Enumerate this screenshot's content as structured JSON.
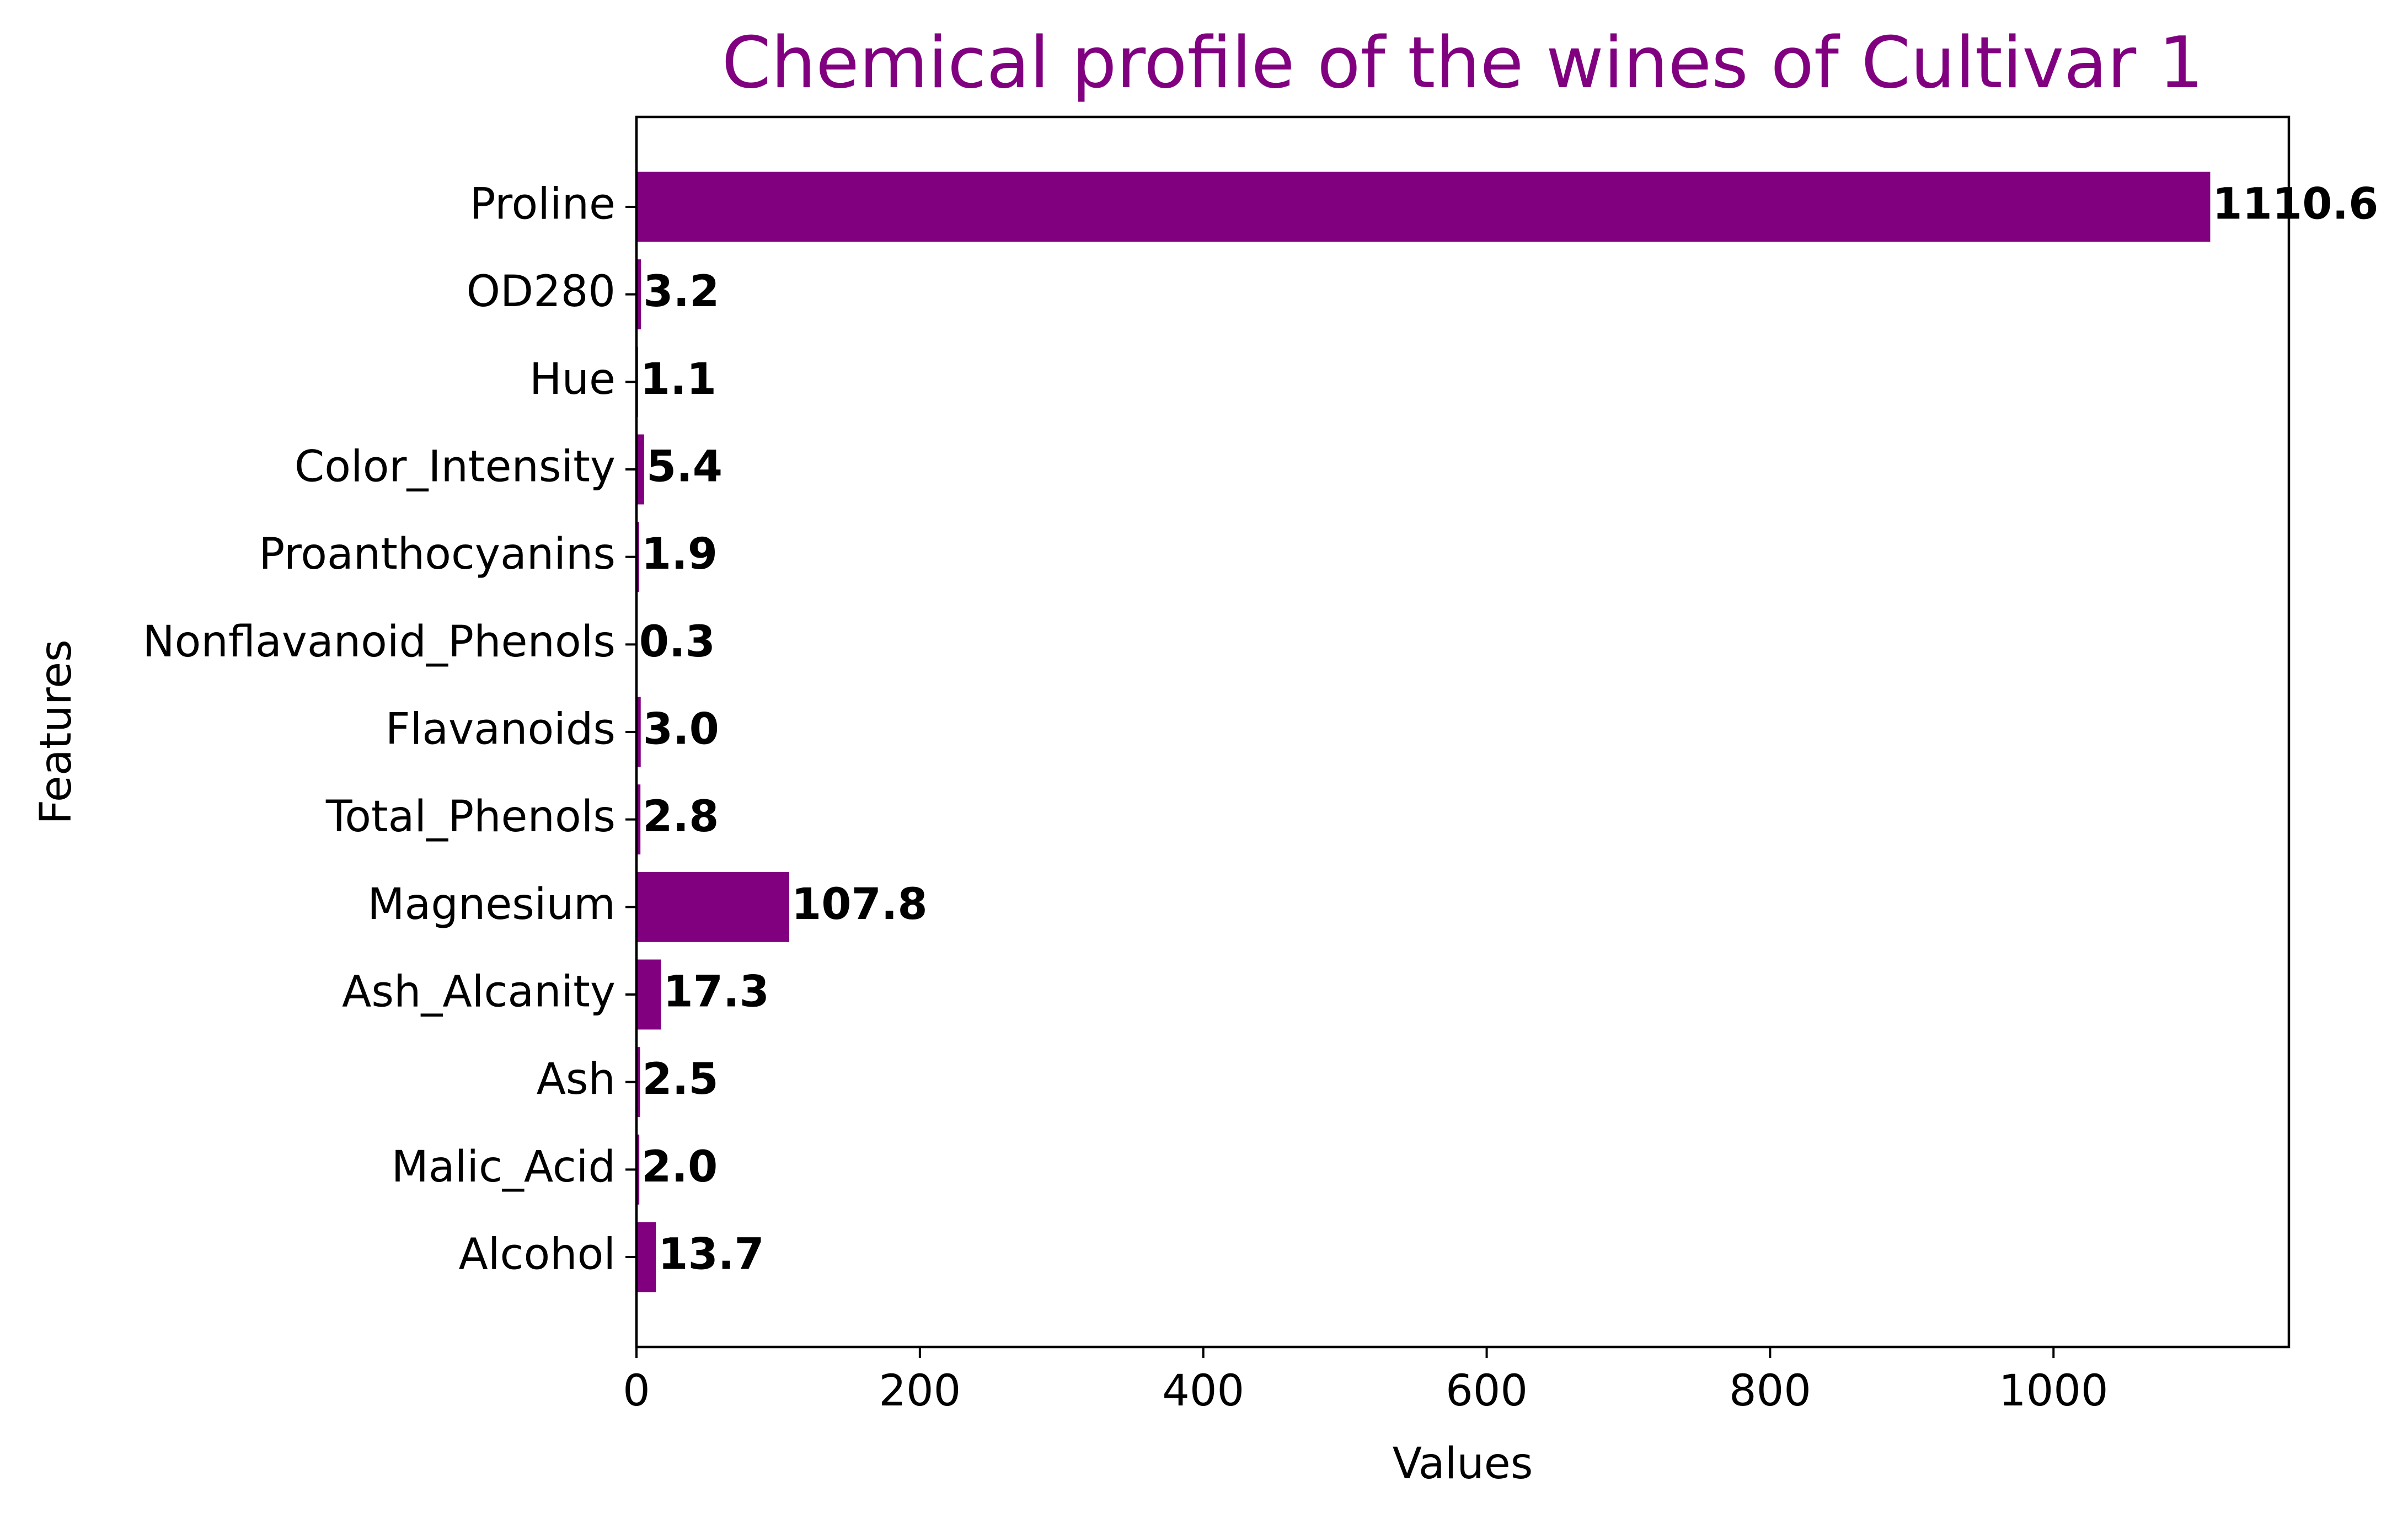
{
  "chart_data": {
    "type": "bar",
    "orientation": "horizontal",
    "title": "Chemical profile of the wines of Cultivar 1",
    "xlabel": "Values",
    "ylabel": "Features",
    "categories": [
      "Alcohol",
      "Malic_Acid",
      "Ash",
      "Ash_Alcanity",
      "Magnesium",
      "Total_Phenols",
      "Flavanoids",
      "Nonflavanoid_Phenols",
      "Proanthocyanins",
      "Color_Intensity",
      "Hue",
      "OD280",
      "Proline"
    ],
    "values": [
      13.7,
      2.0,
      2.5,
      17.3,
      107.8,
      2.8,
      3.0,
      0.3,
      1.9,
      5.4,
      1.1,
      3.2,
      1110.6
    ],
    "value_labels": [
      "13.7",
      "2.0",
      "2.5",
      "17.3",
      "107.8",
      "2.8",
      "3.0",
      "0.3",
      "1.9",
      "5.4",
      "1.1",
      "3.2",
      "1110.6"
    ],
    "xticks": [
      0,
      200,
      400,
      600,
      800,
      1000
    ],
    "xtick_labels": [
      "0",
      "200",
      "400",
      "600",
      "800",
      "1000"
    ],
    "xlim": [
      0,
      1166.1
    ],
    "grid": false,
    "legend": "none",
    "bar_color": "#800080",
    "title_color": "#800080"
  }
}
